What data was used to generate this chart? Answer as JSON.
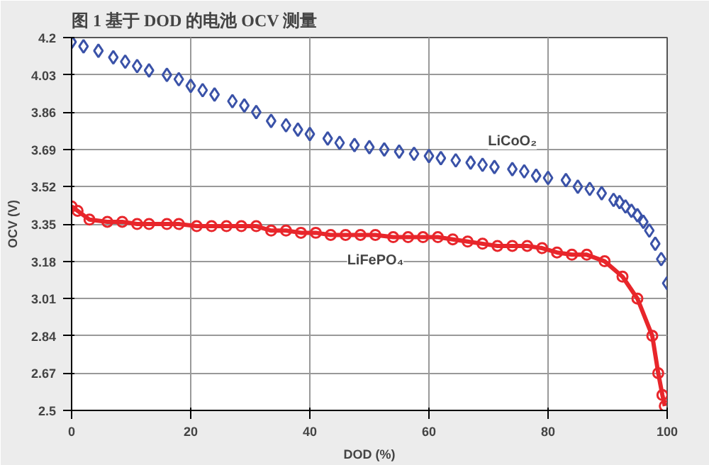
{
  "chart_data": {
    "type": "line",
    "title": "图 1 基于 DOD 的电池 OCV 测量",
    "xlabel": "DOD (%)",
    "ylabel": "OCV (V)",
    "xlim": [
      0,
      100
    ],
    "ylim": [
      2.5,
      4.2
    ],
    "xticks": [
      0,
      20,
      40,
      60,
      80,
      100
    ],
    "yticks": [
      2.5,
      2.67,
      2.84,
      3.01,
      3.18,
      3.35,
      3.52,
      3.69,
      3.86,
      4.03,
      4.2
    ],
    "grid": true,
    "legend": false,
    "series": [
      {
        "name": "LiCoO₂",
        "type": "scatter",
        "marker": "diamond",
        "color": "#3a52a8",
        "x": [
          0,
          2,
          4.5,
          7,
          9,
          11,
          13,
          16,
          18,
          20,
          22,
          24,
          27,
          29,
          31,
          33.5,
          36,
          38,
          40,
          43,
          45,
          47.5,
          50,
          52.5,
          55,
          57.5,
          60,
          62,
          64.5,
          67,
          69,
          71,
          74,
          76,
          78,
          80,
          83,
          85,
          87,
          89,
          91,
          92,
          93,
          94,
          95,
          96,
          97,
          98,
          99,
          100
        ],
        "values": [
          4.18,
          4.16,
          4.14,
          4.11,
          4.09,
          4.07,
          4.05,
          4.03,
          4.01,
          3.98,
          3.96,
          3.94,
          3.91,
          3.89,
          3.86,
          3.82,
          3.8,
          3.78,
          3.76,
          3.74,
          3.72,
          3.71,
          3.7,
          3.69,
          3.68,
          3.67,
          3.66,
          3.65,
          3.64,
          3.63,
          3.62,
          3.61,
          3.6,
          3.59,
          3.57,
          3.56,
          3.55,
          3.52,
          3.51,
          3.49,
          3.46,
          3.45,
          3.43,
          3.41,
          3.39,
          3.36,
          3.32,
          3.26,
          3.19,
          3.08
        ]
      },
      {
        "name": "LiFePO₄",
        "marker": "circle",
        "color": "#e8262b",
        "x": [
          0,
          1,
          3,
          6,
          8.5,
          11,
          13,
          16,
          18,
          21,
          23.5,
          26,
          28.5,
          31,
          33.5,
          36,
          38.5,
          41,
          43.5,
          46,
          48.5,
          51,
          54,
          56.5,
          59,
          61.5,
          64,
          66.5,
          69,
          71.5,
          74,
          76.5,
          79,
          81.5,
          84,
          86.5,
          89.5,
          92.5,
          95,
          97.5,
          98.5,
          99.2,
          99.6
        ],
        "values": [
          3.43,
          3.41,
          3.37,
          3.36,
          3.36,
          3.35,
          3.35,
          3.35,
          3.35,
          3.34,
          3.34,
          3.34,
          3.34,
          3.34,
          3.32,
          3.32,
          3.31,
          3.31,
          3.3,
          3.3,
          3.3,
          3.3,
          3.29,
          3.29,
          3.29,
          3.29,
          3.28,
          3.27,
          3.26,
          3.25,
          3.25,
          3.25,
          3.24,
          3.22,
          3.21,
          3.21,
          3.18,
          3.11,
          3.01,
          2.84,
          2.67,
          2.57,
          2.52
        ]
      }
    ]
  }
}
